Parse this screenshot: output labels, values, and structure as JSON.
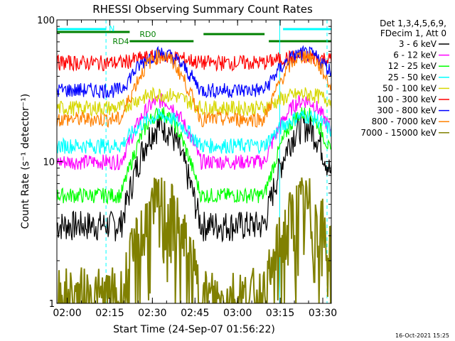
{
  "chart_data": {
    "type": "line",
    "title": "RHESSI Observing Summary Count Rates",
    "xlabel": "Start Time (24-Sep-07 01:56:22)",
    "ylabel": "Count Rate (s⁻¹ detector⁻¹)",
    "y_scale": "log",
    "ylim": [
      1,
      100
    ],
    "xlim": [
      "01:56:22",
      "03:33:00"
    ],
    "x_ticks": [
      "02:00",
      "02:15",
      "02:30",
      "02:45",
      "03:00",
      "03:15",
      "03:30"
    ],
    "y_ticks": [
      "1",
      "10",
      "100"
    ],
    "detector_info": [
      "Det 1,3,4,5,6,9,",
      "FDecim 1, Att 0"
    ],
    "timestamp": "16-Oct-2021 15:25",
    "flags": [
      {
        "label": "N",
        "color": "#00ffff",
        "intervals": [
          [
            "01:56:22",
            "02:13:40"
          ],
          [
            "03:16:00",
            "03:33:00"
          ]
        ]
      },
      {
        "label": "RD0",
        "color": "#008000",
        "intervals": [
          [
            "02:22:00",
            "02:44:30"
          ],
          [
            "02:48:00",
            "03:09:30"
          ],
          [
            "03:11:00",
            "03:33:00"
          ]
        ]
      },
      {
        "label": "RD4",
        "color": "#008000",
        "intervals": [
          [
            "01:56:22",
            "02:22:00"
          ]
        ]
      }
    ],
    "vertical_markers": [
      {
        "time": "02:13:40",
        "color": "#00ffff",
        "style": "dashed"
      },
      {
        "time": "03:14:50",
        "color": "#00ffff",
        "style": "solid"
      },
      {
        "time": "03:31:30",
        "color": "#00ffff",
        "style": "dashed"
      }
    ],
    "series": [
      {
        "name": "3 - 6 keV",
        "color": "#000000",
        "level": 3.6,
        "peak": 18
      },
      {
        "name": "6 - 12 keV",
        "color": "#ff00ff",
        "level": 10,
        "peak": 27
      },
      {
        "name": "12 - 25 keV",
        "color": "#00ff00",
        "level": 5.8,
        "peak": 22
      },
      {
        "name": "25 - 50 keV",
        "color": "#00ffff",
        "level": 13,
        "peak": 21
      },
      {
        "name": "50 - 100 keV",
        "color": "#d7d700",
        "level": 24,
        "peak": 30
      },
      {
        "name": "100 - 300 keV",
        "color": "#ff0000",
        "level": 50,
        "peak": 55
      },
      {
        "name": "300 - 800 keV",
        "color": "#0000ff",
        "level": 32,
        "peak": 58
      },
      {
        "name": "800 - 7000 keV",
        "color": "#ff8000",
        "level": 20,
        "peak": 56
      },
      {
        "name": "7000 - 15000 keV",
        "color": "#808000",
        "level": 1.0,
        "peak": 4.5
      }
    ]
  }
}
